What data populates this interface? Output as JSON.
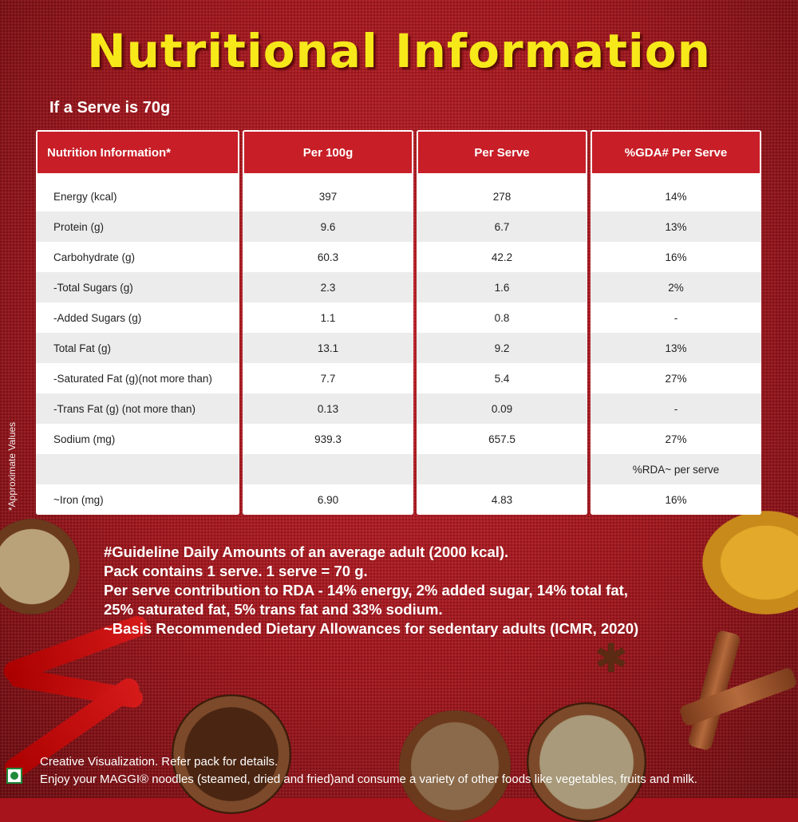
{
  "title": "Nutritional Information",
  "serve_note": "If a Serve is 70g",
  "table": {
    "headers": [
      "Nutrition Information*",
      "Per 100g",
      "Per Serve",
      "%GDA# Per Serve"
    ],
    "rows": [
      [
        "Energy (kcal)",
        "397",
        "278",
        "14%"
      ],
      [
        "Protein (g)",
        "9.6",
        "6.7",
        "13%"
      ],
      [
        "Carbohydrate (g)",
        "60.3",
        "42.2",
        "16%"
      ],
      [
        " -Total Sugars (g)",
        "2.3",
        "1.6",
        "2%"
      ],
      [
        " -Added Sugars (g)",
        "1.1",
        "0.8",
        "-"
      ],
      [
        "Total Fat (g)",
        "13.1",
        "9.2",
        "13%"
      ],
      [
        " -Saturated Fat (g)(not more than)",
        "7.7",
        "5.4",
        "27%"
      ],
      [
        " -Trans Fat (g) (not more than)",
        "0.13",
        "0.09",
        "-"
      ],
      [
        "Sodium (mg)",
        "939.3",
        "657.5",
        "27%"
      ],
      [
        "",
        "",
        "",
        "%RDA~ per serve"
      ],
      [
        "~Iron (mg)",
        "6.90",
        "4.83",
        "16%"
      ]
    ]
  },
  "side_note": "*Approximate Values",
  "notes": [
    "#Guideline Daily Amounts of an average adult  (2000 kcal).",
    "Pack contains 1 serve. 1 serve = 70 g.",
    "Per serve contribution to RDA - 14% energy, 2% added sugar, 14% total fat,",
    "25% saturated fat, 5% trans fat and 33% sodium.",
    "~Basis Recommended Dietary Allowances for sedentary adults (ICMR, 2020)"
  ],
  "footer": [
    "Creative Visualization. Refer pack for details.",
    "Enjoy your MAGGI® noodles (steamed, dried and fried)and consume a variety of other foods like vegetables, fruits and milk."
  ],
  "veg_mark_icon": "veg-symbol-icon"
}
